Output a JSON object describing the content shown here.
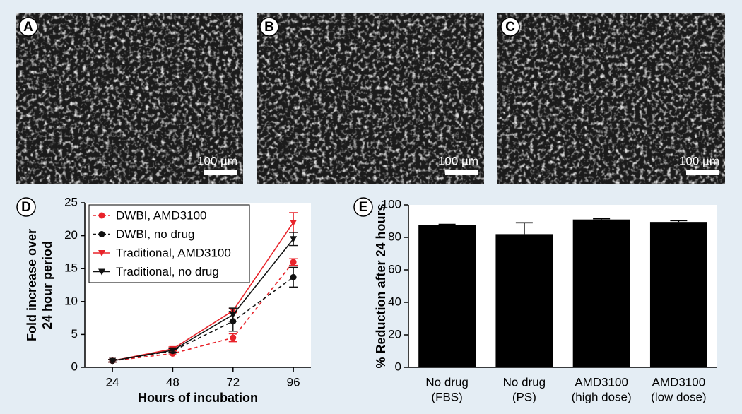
{
  "panels": [
    {
      "label": "A",
      "scale": "100 µm"
    },
    {
      "label": "B",
      "scale": "100 µm"
    },
    {
      "label": "C",
      "scale": "100 µm"
    }
  ],
  "chart_data": [
    {
      "type": "line",
      "panel": "D",
      "xlabel": "Hours of incubation",
      "ylabel": [
        "Fold increase over",
        "24 hour period"
      ],
      "x": [
        24,
        48,
        72,
        96
      ],
      "xlim": [
        13,
        103
      ],
      "xticks": [
        24,
        48,
        72,
        96
      ],
      "ylim": [
        0,
        25
      ],
      "yticks": [
        0,
        5,
        10,
        15,
        20,
        25
      ],
      "legend": "upper-left",
      "series": [
        {
          "name": "DWBI, AMD3100",
          "color": "#e8232a",
          "marker": "circle",
          "dash": true,
          "values": [
            1,
            2.1,
            4.5,
            16
          ],
          "errors": [
            0.2,
            0.2,
            0.6,
            0.5
          ]
        },
        {
          "name": "DWBI, no drug",
          "color": "#111111",
          "marker": "circle",
          "dash": true,
          "values": [
            1,
            2.5,
            7,
            13.7
          ],
          "errors": [
            0.2,
            0.3,
            1.5,
            1.5
          ]
        },
        {
          "name": "Traditional, AMD3100",
          "color": "#e8232a",
          "marker": "triangle",
          "dash": false,
          "values": [
            1,
            2.8,
            8.6,
            22
          ],
          "errors": [
            0.2,
            0.3,
            0.3,
            1.5
          ]
        },
        {
          "name": "Traditional, no drug",
          "color": "#111111",
          "marker": "triangle",
          "dash": false,
          "values": [
            1,
            2.6,
            8,
            19.5
          ],
          "errors": [
            0.2,
            0.3,
            1,
            1
          ]
        }
      ]
    },
    {
      "type": "bar",
      "panel": "E",
      "ylabel": "% Reduction after 24 hours",
      "categories": [
        [
          "No drug",
          "(FBS)"
        ],
        [
          "No drug",
          "(PS)"
        ],
        [
          "AMD3100",
          "(high dose)"
        ],
        [
          "AMD3100",
          "(low dose)"
        ]
      ],
      "values": [
        87.5,
        82,
        91,
        89.5
      ],
      "errors": [
        0.5,
        7,
        0.5,
        0.8
      ],
      "color": "#000000",
      "ylim": [
        0,
        100
      ],
      "yticks": [
        0,
        20,
        40,
        60,
        80,
        100
      ]
    }
  ]
}
